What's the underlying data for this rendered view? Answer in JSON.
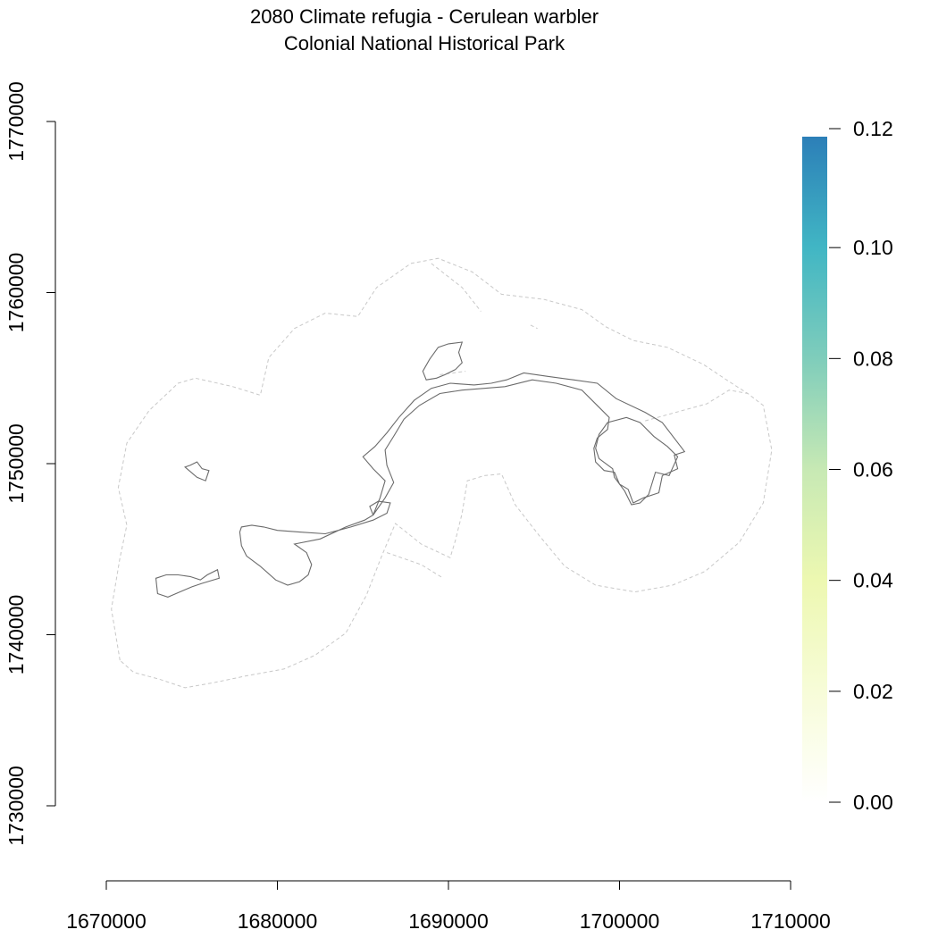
{
  "title": "2080 Climate refugia - Cerulean warbler",
  "subtitle": "Colonial National Historical Park",
  "chart_data": {
    "type": "heatmap",
    "title": "2080 Climate refugia - Cerulean warbler",
    "subtitle": "Colonial National Historical Park",
    "x_ticks": [
      1670000,
      1680000,
      1690000,
      1700000,
      1710000
    ],
    "x_tick_labels": [
      "1670000",
      "1680000",
      "1690000",
      "1700000",
      "1710000"
    ],
    "y_ticks": [
      1730000,
      1740000,
      1750000,
      1760000,
      1770000
    ],
    "y_tick_labels": [
      "1730000",
      "1740000",
      "1750000",
      "1760000",
      "1770000"
    ],
    "xlim": [
      1670000,
      1710000
    ],
    "ylim": [
      1730000,
      1770000
    ],
    "legend": {
      "placement": "right",
      "ticks": [
        0.0,
        0.02,
        0.04,
        0.06,
        0.08,
        0.1,
        0.12
      ],
      "tick_labels": [
        "0.00",
        "0.02",
        "0.04",
        "0.06",
        "0.08",
        "0.10",
        "0.12"
      ],
      "range": [
        0,
        0.12
      ],
      "colors": [
        "#ffffff",
        "#f7fcd8",
        "#edf8b1",
        "#c7e9b4",
        "#7fcdbb",
        "#41b6c4",
        "#2c7fb8"
      ]
    },
    "buffer_boundary": {
      "style": "dashed",
      "color": "#c8c8c8",
      "points": [
        [
          1670800,
          1738500
        ],
        [
          1670300,
          1741500
        ],
        [
          1670800,
          1744500
        ],
        [
          1671200,
          1746400
        ],
        [
          1670700,
          1748600
        ],
        [
          1671200,
          1751200
        ],
        [
          1672500,
          1753100
        ],
        [
          1674200,
          1754700
        ],
        [
          1675200,
          1755000
        ],
        [
          1677400,
          1754500
        ],
        [
          1679000,
          1754000
        ],
        [
          1679500,
          1756200
        ],
        [
          1681000,
          1757900
        ],
        [
          1682800,
          1758800
        ],
        [
          1684700,
          1758600
        ],
        [
          1685800,
          1760300
        ],
        [
          1687800,
          1761700
        ],
        [
          1689400,
          1762000
        ],
        [
          1691400,
          1761200
        ],
        [
          1693100,
          1759900
        ],
        [
          1695600,
          1759600
        ],
        [
          1697800,
          1759000
        ],
        [
          1699200,
          1758000
        ],
        [
          1700800,
          1757200
        ],
        [
          1702800,
          1756800
        ],
        [
          1704900,
          1755800
        ],
        [
          1706400,
          1754800
        ],
        [
          1707500,
          1754100
        ],
        [
          1708400,
          1753400
        ],
        [
          1708900,
          1750800
        ],
        [
          1708400,
          1747700
        ],
        [
          1707000,
          1745400
        ],
        [
          1705000,
          1743700
        ],
        [
          1703100,
          1742900
        ],
        [
          1700900,
          1742500
        ],
        [
          1698600,
          1742900
        ],
        [
          1696800,
          1744000
        ],
        [
          1695300,
          1745800
        ],
        [
          1693900,
          1747600
        ],
        [
          1693100,
          1749400
        ],
        [
          1692100,
          1749300
        ],
        [
          1691100,
          1749000
        ],
        [
          1690800,
          1747100
        ],
        [
          1690400,
          1745500
        ],
        [
          1690100,
          1744500
        ],
        [
          1688400,
          1745300
        ],
        [
          1686900,
          1746500
        ],
        [
          1686100,
          1744600
        ],
        [
          1685200,
          1742300
        ],
        [
          1684000,
          1740100
        ],
        [
          1682200,
          1738800
        ],
        [
          1680400,
          1738000
        ],
        [
          1678200,
          1737600
        ],
        [
          1676300,
          1737200
        ],
        [
          1674600,
          1736900
        ],
        [
          1673100,
          1737400
        ],
        [
          1671600,
          1737800
        ],
        [
          1670800,
          1738500
        ]
      ]
    },
    "park_units": [
      {
        "name": "",
        "points": [
          [
            1673000,
            1742400
          ],
          [
            1673600,
            1742200
          ],
          [
            1674300,
            1742500
          ],
          [
            1675000,
            1742800
          ],
          [
            1675600,
            1743000
          ],
          [
            1676600,
            1743300
          ],
          [
            1676500,
            1743800
          ],
          [
            1675900,
            1743500
          ],
          [
            1675500,
            1743200
          ],
          [
            1674900,
            1743400
          ],
          [
            1674200,
            1743500
          ],
          [
            1673500,
            1743500
          ],
          [
            1672900,
            1743300
          ],
          [
            1673000,
            1742400
          ]
        ]
      },
      {
        "name": "",
        "points": [
          [
            1674600,
            1749800
          ],
          [
            1675300,
            1749200
          ],
          [
            1675800,
            1749000
          ],
          [
            1676000,
            1749600
          ],
          [
            1675600,
            1749700
          ],
          [
            1675300,
            1750100
          ],
          [
            1674900,
            1749900
          ],
          [
            1674600,
            1749800
          ]
        ]
      },
      {
        "name": "",
        "points": [
          [
            1677800,
            1746000
          ],
          [
            1677900,
            1746300
          ],
          [
            1678500,
            1746400
          ],
          [
            1679200,
            1746300
          ],
          [
            1680000,
            1746100
          ],
          [
            1681300,
            1746000
          ],
          [
            1682800,
            1745900
          ],
          [
            1684300,
            1746300
          ],
          [
            1685600,
            1746700
          ],
          [
            1686400,
            1747100
          ],
          [
            1686600,
            1747700
          ],
          [
            1685900,
            1747800
          ],
          [
            1685400,
            1747500
          ],
          [
            1685600,
            1747000
          ],
          [
            1685100,
            1746700
          ],
          [
            1684000,
            1746300
          ],
          [
            1682500,
            1745600
          ],
          [
            1681000,
            1745300
          ],
          [
            1681700,
            1744800
          ],
          [
            1682000,
            1744100
          ],
          [
            1681800,
            1743500
          ],
          [
            1681300,
            1743100
          ],
          [
            1680600,
            1742900
          ],
          [
            1679900,
            1743200
          ],
          [
            1679000,
            1744000
          ],
          [
            1678200,
            1744600
          ],
          [
            1677900,
            1745200
          ],
          [
            1677800,
            1746000
          ]
        ]
      },
      {
        "name": "",
        "points": [
          [
            1685600,
            1747000
          ],
          [
            1686000,
            1748000
          ],
          [
            1686300,
            1749000
          ],
          [
            1685600,
            1749700
          ],
          [
            1685000,
            1750400
          ],
          [
            1685700,
            1751000
          ],
          [
            1686400,
            1751800
          ],
          [
            1687100,
            1752700
          ],
          [
            1688000,
            1753700
          ],
          [
            1689000,
            1754400
          ],
          [
            1690100,
            1754700
          ],
          [
            1691500,
            1754600
          ],
          [
            1692500,
            1754700
          ],
          [
            1693400,
            1754900
          ],
          [
            1694400,
            1755300
          ],
          [
            1695800,
            1755100
          ],
          [
            1697300,
            1754900
          ],
          [
            1698700,
            1754700
          ],
          [
            1699800,
            1753800
          ],
          [
            1701500,
            1753000
          ],
          [
            1702500,
            1752400
          ],
          [
            1703500,
            1751100
          ],
          [
            1703800,
            1750700
          ],
          [
            1703200,
            1750500
          ],
          [
            1703400,
            1749700
          ],
          [
            1702500,
            1749300
          ],
          [
            1702300,
            1748300
          ],
          [
            1701400,
            1748000
          ],
          [
            1700800,
            1747700
          ],
          [
            1700500,
            1748500
          ],
          [
            1700000,
            1748800
          ],
          [
            1699700,
            1749500
          ],
          [
            1699100,
            1749600
          ],
          [
            1698600,
            1750100
          ],
          [
            1698500,
            1750900
          ],
          [
            1698700,
            1751500
          ],
          [
            1699300,
            1752000
          ],
          [
            1699400,
            1752700
          ],
          [
            1698800,
            1753300
          ],
          [
            1697800,
            1754300
          ],
          [
            1696300,
            1754700
          ],
          [
            1694900,
            1754900
          ],
          [
            1693300,
            1754500
          ],
          [
            1692100,
            1754400
          ],
          [
            1690800,
            1754300
          ],
          [
            1689500,
            1754100
          ],
          [
            1688300,
            1753400
          ],
          [
            1687400,
            1752600
          ],
          [
            1686800,
            1751600
          ],
          [
            1686300,
            1750800
          ],
          [
            1686400,
            1749900
          ],
          [
            1686800,
            1748900
          ],
          [
            1686300,
            1748000
          ],
          [
            1685600,
            1747000
          ]
        ]
      },
      {
        "name": "",
        "points": [
          [
            1688700,
            1754900
          ],
          [
            1688500,
            1755400
          ],
          [
            1688900,
            1756100
          ],
          [
            1689400,
            1756800
          ],
          [
            1690000,
            1757000
          ],
          [
            1690800,
            1757100
          ],
          [
            1690600,
            1756500
          ],
          [
            1690800,
            1755900
          ],
          [
            1690400,
            1755500
          ],
          [
            1689800,
            1755200
          ],
          [
            1689300,
            1755000
          ],
          [
            1688700,
            1754900
          ]
        ]
      },
      {
        "name": "",
        "points": [
          [
            1701700,
            1748200
          ],
          [
            1702100,
            1749500
          ],
          [
            1702900,
            1749300
          ],
          [
            1703400,
            1750400
          ],
          [
            1702800,
            1751000
          ],
          [
            1702000,
            1751600
          ],
          [
            1701200,
            1752400
          ],
          [
            1700400,
            1752700
          ],
          [
            1699300,
            1752400
          ],
          [
            1698800,
            1751700
          ],
          [
            1698600,
            1750900
          ],
          [
            1698800,
            1750300
          ],
          [
            1699600,
            1749700
          ],
          [
            1699700,
            1749200
          ],
          [
            1700300,
            1748400
          ],
          [
            1700700,
            1747600
          ],
          [
            1701200,
            1747700
          ],
          [
            1701700,
            1748200
          ]
        ]
      }
    ],
    "faint_lines": [
      [
        [
          1689000,
          1761700
        ],
        [
          1690800,
          1760300
        ],
        [
          1691900,
          1758900
        ]
      ],
      [
        [
          1689500,
          1755200
        ],
        [
          1691000,
          1755400
        ]
      ],
      [
        [
          1701500,
          1752500
        ],
        [
          1705100,
          1753500
        ],
        [
          1706400,
          1754300
        ],
        [
          1707500,
          1754100
        ]
      ],
      [
        [
          1686400,
          1744800
        ],
        [
          1688400,
          1744100
        ],
        [
          1689700,
          1743300
        ]
      ],
      [
        [
          1694800,
          1758100
        ],
        [
          1695200,
          1757900
        ]
      ]
    ]
  }
}
